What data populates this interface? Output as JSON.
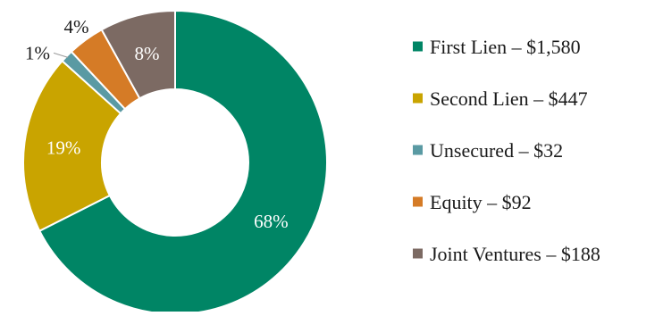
{
  "chart_data": {
    "type": "pie",
    "variant": "donut",
    "series": [
      {
        "name": "First Lien",
        "value": 1580,
        "percent_label": "68%",
        "color": "#008565"
      },
      {
        "name": "Second Lien",
        "value": 447,
        "percent_label": "19%",
        "color": "#c9a400"
      },
      {
        "name": "Unsecured",
        "value": 32,
        "percent_label": "1%",
        "color": "#5a9aa3"
      },
      {
        "name": "Equity",
        "value": 92,
        "percent_label": "4%",
        "color": "#d57b26"
      },
      {
        "name": "Joint Ventures",
        "value": 188,
        "percent_label": "8%",
        "color": "#7c6a63"
      }
    ],
    "legend_position": "right",
    "legend_labels": [
      "First Lien – $1,580",
      "Second Lien – $447",
      "Unsecured – $32",
      "Equity – $92",
      "Joint Ventures – $188"
    ]
  }
}
